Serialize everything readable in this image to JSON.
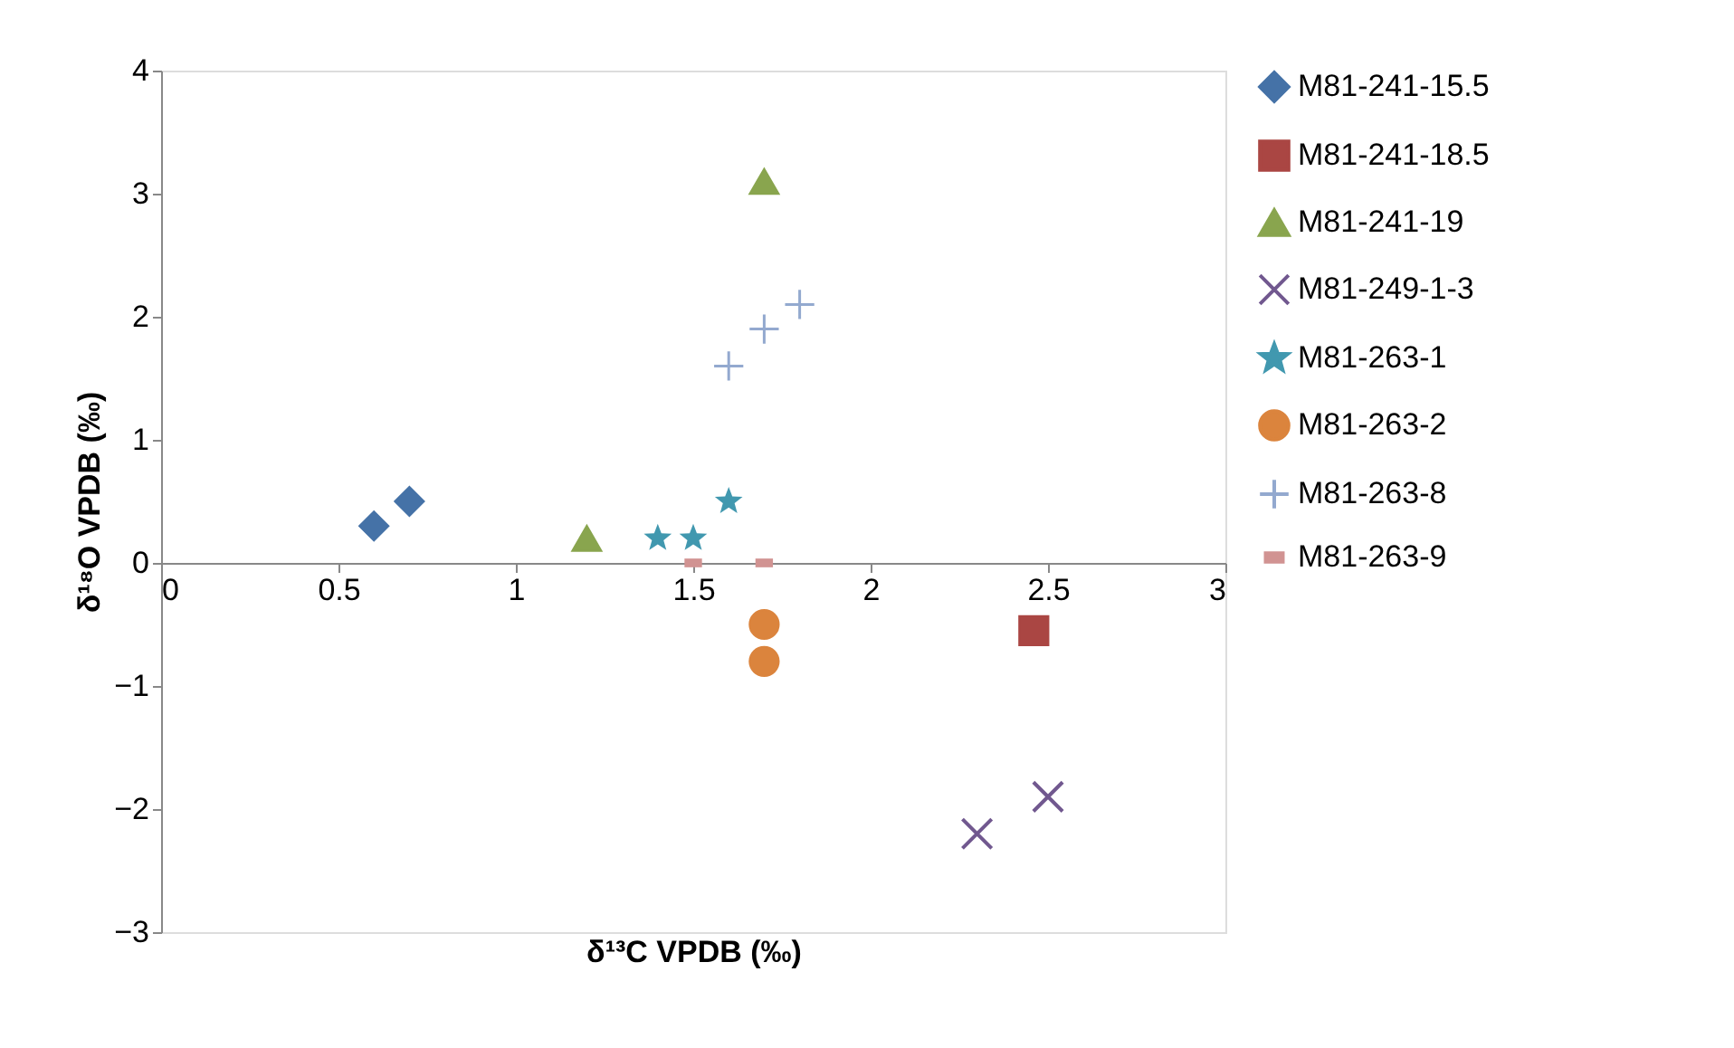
{
  "chart_data": {
    "type": "scatter",
    "xlabel": "δ¹³C VPDB (‰)",
    "ylabel": "δ¹⁸O VPDB (‰)",
    "xlim": [
      0,
      3
    ],
    "xticks": [
      0,
      0.5,
      1,
      1.5,
      2,
      2.5,
      3
    ],
    "ylim": [
      -3,
      4
    ],
    "yticks": [
      -3,
      -2,
      -1,
      0,
      1,
      2,
      3,
      4
    ],
    "grid": false,
    "legend": "right",
    "series": [
      {
        "name": "M81-241-15.5",
        "color": "#4572a7",
        "marker": "diamond",
        "x": [
          0.6,
          0.7
        ],
        "values": [
          0.3,
          0.5
        ]
      },
      {
        "name": "M81-241-18.5",
        "color": "#aa4643",
        "marker": "square",
        "x": [
          2.46
        ],
        "values": [
          -0.55
        ]
      },
      {
        "name": "M81-241-19",
        "color": "#89a54e",
        "marker": "triangle",
        "x": [
          1.2,
          1.7
        ],
        "values": [
          0.2,
          3.1
        ]
      },
      {
        "name": "M81-249-1-3",
        "color": "#71588f",
        "marker": "x",
        "x": [
          2.3,
          2.5
        ],
        "values": [
          -2.2,
          -1.9
        ]
      },
      {
        "name": "M81-263-1",
        "color": "#4198af",
        "marker": "star",
        "x": [
          1.4,
          1.5,
          1.6
        ],
        "values": [
          0.2,
          0.2,
          0.5
        ]
      },
      {
        "name": "M81-263-2",
        "color": "#db843d",
        "marker": "circle",
        "x": [
          1.7,
          1.7
        ],
        "values": [
          -0.5,
          -0.8
        ]
      },
      {
        "name": "M81-263-8",
        "color": "#93a9cf",
        "marker": "cross",
        "x": [
          1.6,
          1.7,
          1.8
        ],
        "values": [
          1.6,
          1.9,
          2.1
        ]
      },
      {
        "name": "M81-263-9",
        "color": "#d19392",
        "x": [
          1.5,
          1.7
        ],
        "values": [
          0,
          0
        ]
      }
    ]
  }
}
